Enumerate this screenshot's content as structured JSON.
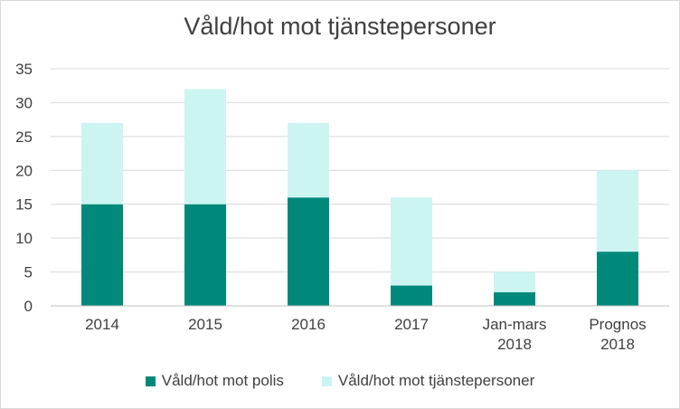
{
  "chart_data": {
    "type": "bar",
    "stacked": true,
    "title": "Våld/hot mot tjänstepersoner",
    "categories": [
      [
        "2014"
      ],
      [
        "2015"
      ],
      [
        "2016"
      ],
      [
        "2017"
      ],
      [
        "Jan-mars",
        "2018"
      ],
      [
        "Prognos",
        "2018"
      ]
    ],
    "series": [
      {
        "name": "Våld/hot mot polis",
        "color": "#00897b",
        "values": [
          15,
          15,
          16,
          3,
          2,
          8
        ]
      },
      {
        "name": "Våld/hot mot tjänstepersoner",
        "color": "#ccf5f2",
        "values": [
          12,
          17,
          11,
          13,
          3,
          12
        ]
      }
    ],
    "ylim": [
      0,
      35
    ],
    "yticks": [
      0,
      5,
      10,
      15,
      20,
      25,
      30,
      35
    ],
    "grid": true,
    "legend_position": "bottom"
  }
}
